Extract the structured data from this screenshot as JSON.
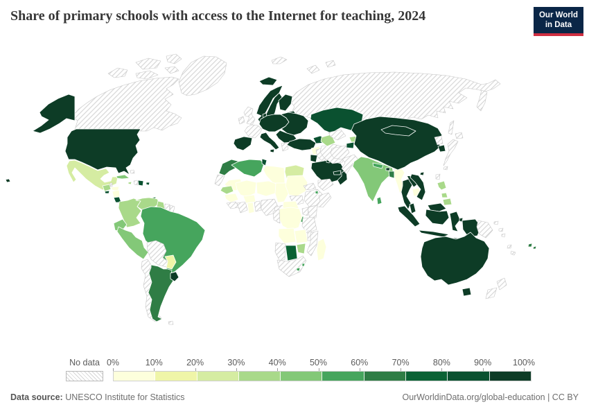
{
  "header": {
    "logo": {
      "line1": "Our World",
      "line2": "in Data",
      "bg_color": "#0a2647",
      "accent_color": "#cf2e41"
    }
  },
  "chart_data": {
    "type": "choropleth_map",
    "title": "Share of primary schools with access to the Internet for teaching, 2024",
    "unit": "% of primary schools",
    "legend_position": "bottom",
    "tick_labels": [
      "0%",
      "10%",
      "20%",
      "30%",
      "40%",
      "50%",
      "60%",
      "70%",
      "80%",
      "90%",
      "100%"
    ],
    "bin_ranges": [
      "0-10%",
      "10-20%",
      "20-30%",
      "30-40%",
      "40-50%",
      "50-60%",
      "60-70%",
      "70-80%",
      "80-90%",
      "90-100%"
    ],
    "bin_colors": [
      "#fdffdc",
      "#eff5a8",
      "#d5eca2",
      "#a9d98a",
      "#83c878",
      "#46a55d",
      "#2f7d45",
      "#0a6234",
      "#0a5130",
      "#0d3c26"
    ],
    "no_data": {
      "label": "No data",
      "hatch_color": "#d6d6d6"
    },
    "countries": [
      {
        "id": "russia",
        "name": "Russia",
        "bin": null
      },
      {
        "id": "canada",
        "name": "Canada",
        "bin": null
      },
      {
        "id": "greenland",
        "name": "Greenland",
        "bin": null
      },
      {
        "id": "svalbard",
        "name": "Svalbard and Arctic islands",
        "bin": null
      },
      {
        "id": "iceland",
        "name": "Iceland",
        "bin": 9
      },
      {
        "id": "usa",
        "name": "United States",
        "bin": 9
      },
      {
        "id": "mexico",
        "name": "Mexico",
        "bin": 2
      },
      {
        "id": "guatemala",
        "name": "Guatemala",
        "bin": 3
      },
      {
        "id": "belize",
        "name": "Belize",
        "bin": null
      },
      {
        "id": "honduras",
        "name": "Honduras",
        "bin": 0
      },
      {
        "id": "el-salvador",
        "name": "El Salvador",
        "bin": 8
      },
      {
        "id": "nicaragua",
        "name": "Nicaragua",
        "bin": 0
      },
      {
        "id": "costa-rica",
        "name": "Costa Rica",
        "bin": 8
      },
      {
        "id": "panama",
        "name": "Panama",
        "bin": null
      },
      {
        "id": "cuba",
        "name": "Cuba",
        "bin": 4
      },
      {
        "id": "jamaica",
        "name": "Jamaica",
        "bin": 3
      },
      {
        "id": "haiti",
        "name": "Haiti",
        "bin": null
      },
      {
        "id": "dominican-republic",
        "name": "Dominican Republic",
        "bin": 8
      },
      {
        "id": "puerto-rico",
        "name": "Puerto Rico",
        "bin": 8
      },
      {
        "id": "trinidad-tobago",
        "name": "Trinidad and Tobago",
        "bin": 6
      },
      {
        "id": "bahamas",
        "name": "Bahamas",
        "bin": null
      },
      {
        "id": "colombia",
        "name": "Colombia",
        "bin": 3
      },
      {
        "id": "venezuela",
        "name": "Venezuela",
        "bin": 3
      },
      {
        "id": "guyana",
        "name": "Guyana",
        "bin": 3
      },
      {
        "id": "suriname",
        "name": "Suriname",
        "bin": null
      },
      {
        "id": "french-guiana",
        "name": "French Guiana",
        "bin": null
      },
      {
        "id": "ecuador",
        "name": "Ecuador",
        "bin": 4
      },
      {
        "id": "peru",
        "name": "Peru",
        "bin": 4
      },
      {
        "id": "brazil",
        "name": "Brazil",
        "bin": 5
      },
      {
        "id": "bolivia",
        "name": "Bolivia",
        "bin": null
      },
      {
        "id": "paraguay",
        "name": "Paraguay",
        "bin": 1
      },
      {
        "id": "chile",
        "name": "Chile",
        "bin": null
      },
      {
        "id": "argentina",
        "name": "Argentina",
        "bin": 6
      },
      {
        "id": "uruguay",
        "name": "Uruguay",
        "bin": 9
      },
      {
        "id": "falkland-islands",
        "name": "Falkland Islands",
        "bin": null
      },
      {
        "id": "norway",
        "name": "Norway",
        "bin": 9
      },
      {
        "id": "sweden",
        "name": "Sweden",
        "bin": 9
      },
      {
        "id": "finland",
        "name": "Finland",
        "bin": 9
      },
      {
        "id": "baltic-states",
        "name": "Baltic states",
        "bin": 9
      },
      {
        "id": "denmark",
        "name": "Denmark",
        "bin": 9
      },
      {
        "id": "united-kingdom",
        "name": "United Kingdom",
        "bin": null
      },
      {
        "id": "ireland",
        "name": "Ireland",
        "bin": null
      },
      {
        "id": "france",
        "name": "France",
        "bin": null
      },
      {
        "id": "central-europe",
        "name": "Germany and Central Europe",
        "bin": 9
      },
      {
        "id": "eastern-europe",
        "name": "Poland, Belarus and Ukraine",
        "bin": 9
      },
      {
        "id": "balkans",
        "name": "Romania and Balkans",
        "bin": 9
      },
      {
        "id": "greece",
        "name": "Greece",
        "bin": null
      },
      {
        "id": "italy",
        "name": "Italy",
        "bin": 9
      },
      {
        "id": "spain",
        "name": "Spain and Portugal",
        "bin": 9
      },
      {
        "id": "turkey",
        "name": "Turkey",
        "bin": 9
      },
      {
        "id": "caucasus",
        "name": "Georgia, Armenia and Azerbaijan",
        "bin": 8
      },
      {
        "id": "morocco",
        "name": "Morocco",
        "bin": 6
      },
      {
        "id": "western-sahara",
        "name": "Western Sahara",
        "bin": null
      },
      {
        "id": "algeria",
        "name": "Algeria",
        "bin": 5
      },
      {
        "id": "tunisia",
        "name": "Tunisia",
        "bin": 8
      },
      {
        "id": "libya",
        "name": "Libya",
        "bin": 0
      },
      {
        "id": "egypt",
        "name": "Egypt",
        "bin": 2
      },
      {
        "id": "mauritania",
        "name": "Mauritania",
        "bin": 0
      },
      {
        "id": "mali",
        "name": "Mali",
        "bin": 0
      },
      {
        "id": "niger",
        "name": "Niger",
        "bin": 0
      },
      {
        "id": "chad",
        "name": "Chad",
        "bin": 0
      },
      {
        "id": "sudan",
        "name": "Sudan",
        "bin": 0
      },
      {
        "id": "south-sudan",
        "name": "South Sudan",
        "bin": null
      },
      {
        "id": "senegal",
        "name": "Senegal",
        "bin": 3
      },
      {
        "id": "guinea",
        "name": "Guinea",
        "bin": 0
      },
      {
        "id": "sierra-leone-liberia",
        "name": "Sierra Leone and Liberia",
        "bin": null
      },
      {
        "id": "cote-divoire",
        "name": "Cote d'Ivoire",
        "bin": null
      },
      {
        "id": "ghana",
        "name": "Ghana",
        "bin": 0
      },
      {
        "id": "togo-benin",
        "name": "Togo and Benin",
        "bin": null
      },
      {
        "id": "burkina-faso",
        "name": "Burkina Faso",
        "bin": 0
      },
      {
        "id": "nigeria",
        "name": "Nigeria",
        "bin": null
      },
      {
        "id": "cameroon",
        "name": "Cameroon",
        "bin": null
      },
      {
        "id": "central-african-republic",
        "name": "Central African Republic",
        "bin": 0
      },
      {
        "id": "ethiopia",
        "name": "Ethiopia",
        "bin": null
      },
      {
        "id": "eritrea",
        "name": "Eritrea",
        "bin": null
      },
      {
        "id": "djibouti",
        "name": "Djibouti",
        "bin": 5
      },
      {
        "id": "somalia",
        "name": "Somalia",
        "bin": null
      },
      {
        "id": "kenya",
        "name": "Kenya",
        "bin": null
      },
      {
        "id": "uganda",
        "name": "Uganda",
        "bin": null
      },
      {
        "id": "rwanda-burundi",
        "name": "Rwanda and Burundi",
        "bin": 5
      },
      {
        "id": "drc",
        "name": "Democratic Republic of Congo",
        "bin": 0
      },
      {
        "id": "congo-gabon",
        "name": "Congo and Gabon",
        "bin": null
      },
      {
        "id": "tanzania",
        "name": "Tanzania",
        "bin": null
      },
      {
        "id": "angola",
        "name": "Angola",
        "bin": 0
      },
      {
        "id": "zambia",
        "name": "Zambia",
        "bin": 0
      },
      {
        "id": "malawi",
        "name": "Malawi",
        "bin": null
      },
      {
        "id": "mozambique",
        "name": "Mozambique",
        "bin": null
      },
      {
        "id": "zimbabwe",
        "name": "Zimbabwe",
        "bin": 3
      },
      {
        "id": "botswana",
        "name": "Botswana",
        "bin": 7
      },
      {
        "id": "namibia",
        "name": "Namibia",
        "bin": null
      },
      {
        "id": "south-africa",
        "name": "South Africa",
        "bin": null
      },
      {
        "id": "lesotho",
        "name": "Lesotho",
        "bin": 5
      },
      {
        "id": "eswatini",
        "name": "Eswatini",
        "bin": 5
      },
      {
        "id": "madagascar",
        "name": "Madagascar",
        "bin": 0
      },
      {
        "id": "syria",
        "name": "Syria",
        "bin": 0
      },
      {
        "id": "israel-jordan",
        "name": "Israel and Jordan",
        "bin": 9
      },
      {
        "id": "iraq",
        "name": "Iraq",
        "bin": null
      },
      {
        "id": "saudi-arabia",
        "name": "Saudi Arabia",
        "bin": 9
      },
      {
        "id": "kuwait",
        "name": "Kuwait",
        "bin": 9
      },
      {
        "id": "qatar-uae",
        "name": "Qatar and United Arab Emirates",
        "bin": 9
      },
      {
        "id": "oman",
        "name": "Oman",
        "bin": 9
      },
      {
        "id": "yemen",
        "name": "Yemen",
        "bin": null
      },
      {
        "id": "iran",
        "name": "Iran",
        "bin": null
      },
      {
        "id": "kazakhstan",
        "name": "Kazakhstan",
        "bin": 8
      },
      {
        "id": "turkmenistan",
        "name": "Turkmenistan",
        "bin": 3
      },
      {
        "id": "uzbekistan",
        "name": "Uzbekistan",
        "bin": null
      },
      {
        "id": "kyrgyzstan",
        "name": "Kyrgyzstan",
        "bin": 3
      },
      {
        "id": "tajikistan",
        "name": "Tajikistan",
        "bin": 8
      },
      {
        "id": "afghanistan",
        "name": "Afghanistan",
        "bin": null
      },
      {
        "id": "pakistan",
        "name": "Pakistan",
        "bin": null
      },
      {
        "id": "india",
        "name": "India",
        "bin": 4
      },
      {
        "id": "nepal",
        "name": "Nepal",
        "bin": 5
      },
      {
        "id": "bhutan",
        "name": "Bhutan",
        "bin": 9
      },
      {
        "id": "bangladesh",
        "name": "Bangladesh",
        "bin": 6
      },
      {
        "id": "sri-lanka",
        "name": "Sri Lanka",
        "bin": 5
      },
      {
        "id": "myanmar",
        "name": "Myanmar",
        "bin": 0
      },
      {
        "id": "china",
        "name": "China",
        "bin": 9
      },
      {
        "id": "mongolia",
        "name": "Mongolia",
        "bin": 9
      },
      {
        "id": "thailand",
        "name": "Thailand",
        "bin": 9
      },
      {
        "id": "laos",
        "name": "Laos",
        "bin": 9
      },
      {
        "id": "cambodia",
        "name": "Cambodia",
        "bin": 0
      },
      {
        "id": "vietnam",
        "name": "Vietnam",
        "bin": 9
      },
      {
        "id": "north-korea",
        "name": "North Korea",
        "bin": null
      },
      {
        "id": "south-korea",
        "name": "South Korea",
        "bin": 9
      },
      {
        "id": "japan",
        "name": "Japan",
        "bin": null
      },
      {
        "id": "taiwan",
        "name": "Taiwan",
        "bin": null
      },
      {
        "id": "malaysia",
        "name": "Malaysia",
        "bin": 9
      },
      {
        "id": "indonesia",
        "name": "Indonesia",
        "bin": 9
      },
      {
        "id": "philippines",
        "name": "Philippines",
        "bin": 3
      },
      {
        "id": "papua-new-guinea",
        "name": "Papua New Guinea",
        "bin": null
      },
      {
        "id": "solomon-islands",
        "name": "Solomon Islands",
        "bin": null
      },
      {
        "id": "vanuatu-new-caledonia",
        "name": "Vanuatu and New Caledonia",
        "bin": null
      },
      {
        "id": "fiji",
        "name": "Fiji",
        "bin": 6
      },
      {
        "id": "australia",
        "name": "Australia",
        "bin": 9
      },
      {
        "id": "new-zealand",
        "name": "New Zealand",
        "bin": null
      }
    ]
  },
  "footer": {
    "source_label": "Data source:",
    "source_text": " UNESCO Institute for Statistics",
    "credit_text": "OurWorldinData.org/global-education | CC BY"
  }
}
